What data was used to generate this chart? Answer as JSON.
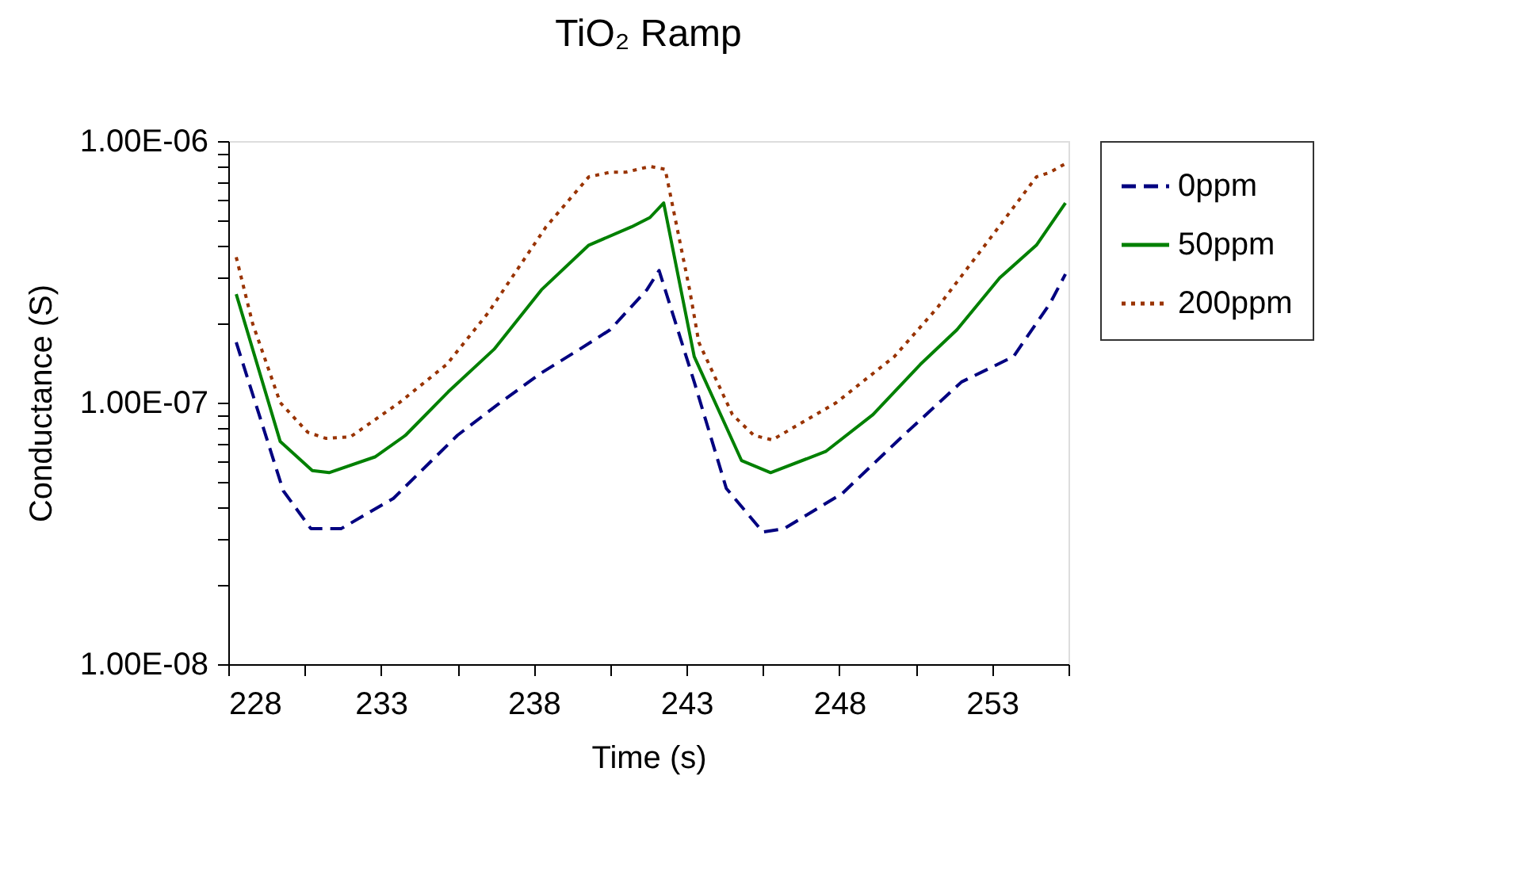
{
  "chart_data": {
    "type": "line",
    "title": "TiO₂ Ramp",
    "xlabel": "Time (s)",
    "ylabel": "Conductance (S)",
    "log": "y",
    "grid": false,
    "legend": "right",
    "marker": "none",
    "xlim": [
      228,
      255.5
    ],
    "xticks": [
      228,
      {
        "value": 230.5,
        "label": null
      },
      233,
      {
        "value": 235.5,
        "label": null
      },
      238,
      {
        "value": 240.5,
        "label": null
      },
      243,
      {
        "value": 245.5,
        "label": null
      },
      248,
      {
        "value": 250.5,
        "label": null
      },
      253,
      {
        "value": 255.5,
        "label": null
      }
    ],
    "ylim": [
      1e-08,
      1e-06
    ],
    "yticks": [
      {
        "value": 1e-08,
        "label": "1.00E-08"
      },
      {
        "value": 2e-08,
        "label": null
      },
      {
        "value": 3e-08,
        "label": null
      },
      {
        "value": 4e-08,
        "label": null
      },
      {
        "value": 5e-08,
        "label": null
      },
      {
        "value": 6e-08,
        "label": null
      },
      {
        "value": 7e-08,
        "label": null
      },
      {
        "value": 8e-08,
        "label": null
      },
      {
        "value": 9e-08,
        "label": null
      },
      {
        "value": 1e-07,
        "label": "1.00E-07"
      },
      {
        "value": 2e-07,
        "label": null
      },
      {
        "value": 3e-07,
        "label": null
      },
      {
        "value": 4e-07,
        "label": null
      },
      {
        "value": 5e-07,
        "label": null
      },
      {
        "value": 6e-07,
        "label": null
      },
      {
        "value": 7e-07,
        "label": null
      },
      {
        "value": 8e-07,
        "label": null
      },
      {
        "value": 9e-07,
        "label": null
      },
      {
        "value": 1e-06,
        "label": "1.00E-06"
      }
    ],
    "series": [
      {
        "name": "0ppm",
        "color": "#000080",
        "line_style": "dashed",
        "x": [
          228.26,
          229.8,
          230.7,
          231.7,
          233.4,
          235.5,
          236.9,
          238.25,
          239.5,
          240.5,
          241.7,
          242.1,
          243.25,
          244.3,
          245.5,
          246.2,
          248.1,
          250.1,
          252.0,
          253.7,
          254.9,
          255.4
        ],
        "values": [
          1.7e-07,
          4.6e-08,
          3.3e-08,
          3.3e-08,
          4.3e-08,
          7.5e-08,
          1e-07,
          1.3e-07,
          1.6e-07,
          1.9e-07,
          2.7e-07,
          3.2e-07,
          1.2e-07,
          4.7e-08,
          3.2e-08,
          3.3e-08,
          4.5e-08,
          7.5e-08,
          1.2e-07,
          1.5e-07,
          2.4e-07,
          3.1e-07
        ]
      },
      {
        "name": "50ppm",
        "color": "#008000",
        "line_style": "solid",
        "x": [
          228.26,
          229.7,
          230.75,
          231.3,
          232.8,
          233.8,
          235.2,
          236.7,
          238.25,
          239.8,
          241.2,
          241.8,
          242.25,
          243.25,
          244.8,
          245.75,
          247.55,
          249.1,
          250.65,
          251.85,
          253.25,
          254.45,
          255.4
        ],
        "values": [
          2.6e-07,
          7.1e-08,
          5.5e-08,
          5.4e-08,
          6.2e-08,
          7.5e-08,
          1.1e-07,
          1.6e-07,
          2.7e-07,
          4e-07,
          4.7e-07,
          5.1e-07,
          5.8e-07,
          1.5e-07,
          6e-08,
          5.4e-08,
          6.5e-08,
          9e-08,
          1.4e-07,
          1.9e-07,
          3e-07,
          4e-07,
          5.8e-07
        ]
      },
      {
        "name": "200ppm",
        "color": "#993300",
        "line_style": "dotted",
        "x": [
          228.26,
          228.8,
          229.7,
          230.6,
          231.2,
          232.0,
          233.6,
          235.15,
          236.5,
          238.4,
          239.8,
          240.5,
          241.0,
          241.8,
          242.3,
          243.1,
          243.4,
          244.5,
          245.2,
          245.8,
          247.9,
          249.8,
          251.2,
          253.1,
          254.45,
          254.9,
          255.4
        ],
        "values": [
          3.6e-07,
          2e-07,
          1e-07,
          7.7e-08,
          7.3e-08,
          7.4e-08,
          1e-07,
          1.4e-07,
          2.2e-07,
          4.7e-07,
          7.3e-07,
          7.6e-07,
          7.6e-07,
          8e-07,
          7.8e-07,
          2.7e-07,
          1.7e-07,
          9e-08,
          7.5e-08,
          7.2e-08,
          1e-07,
          1.5e-07,
          2.3e-07,
          4.5e-07,
          7.3e-07,
          7.6e-07,
          8.2e-07
        ]
      }
    ]
  }
}
